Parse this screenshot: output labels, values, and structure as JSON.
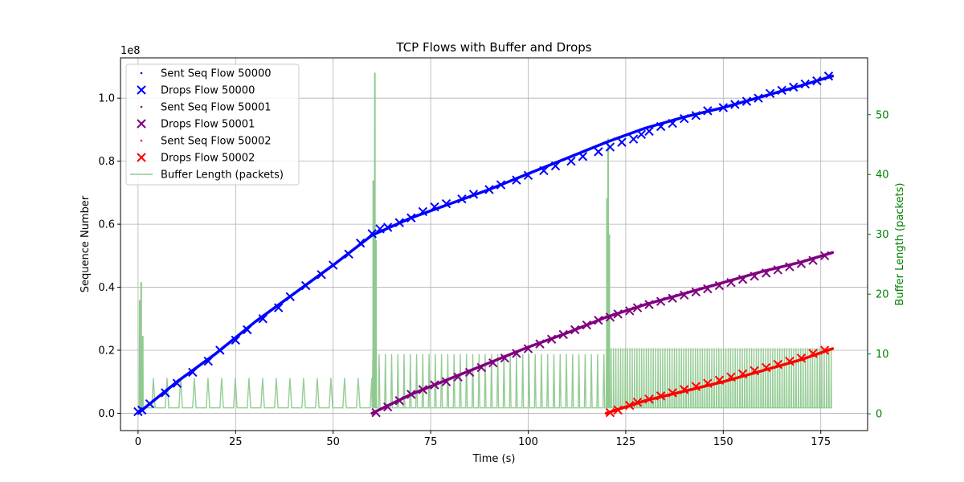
{
  "chart_data": {
    "type": "scatter",
    "title": "TCP Flows with Buffer and Drops",
    "xlabel": "Time (s)",
    "ylabel": "Sequence Number",
    "y_offset_label": "1e8",
    "y2label": "Buffer Length (packets)",
    "xlim": [
      -4.5,
      187
    ],
    "ylim": [
      -0.055,
      1.128
    ],
    "y2lim": [
      -2.8,
      59.5
    ],
    "x_ticks": [
      0,
      25,
      50,
      75,
      100,
      125,
      150,
      175
    ],
    "y_ticks": [
      0.0,
      0.2,
      0.4,
      0.6,
      0.8,
      1.0
    ],
    "y2_ticks": [
      0,
      10,
      20,
      30,
      40,
      50
    ],
    "x_tick_labels": [
      "0",
      "25",
      "50",
      "75",
      "100",
      "125",
      "150",
      "175"
    ],
    "y_tick_labels": [
      "0.0",
      "0.2",
      "0.4",
      "0.6",
      "0.8",
      "1.0"
    ],
    "y2_tick_labels": [
      "0",
      "10",
      "20",
      "30",
      "40",
      "50"
    ],
    "grid": true,
    "legend_position": "top-left",
    "colors": {
      "flow_50000": "#0000ff",
      "flow_50001": "#800080",
      "flow_50002": "#ff0000",
      "buffer": "#8fc98f",
      "right_axis": "#008000"
    },
    "legend": [
      {
        "label": "Sent Seq Flow 50000",
        "marker": "dot",
        "color": "#0000ff"
      },
      {
        "label": "Drops Flow 50000",
        "marker": "x",
        "color": "#0000ff"
      },
      {
        "label": "Sent Seq Flow 50001",
        "marker": "dot",
        "color": "#800080"
      },
      {
        "label": "Drops Flow 50001",
        "marker": "x",
        "color": "#800080"
      },
      {
        "label": "Sent Seq Flow 50002",
        "marker": "dot",
        "color": "#ff0000"
      },
      {
        "label": "Drops Flow 50002",
        "marker": "x",
        "color": "#ff0000"
      },
      {
        "label": "Buffer Length (packets)",
        "marker": "line",
        "color": "#8fc98f"
      }
    ],
    "series": [
      {
        "name": "Sent Seq Flow 50000",
        "kind": "sent",
        "color": "#0000ff",
        "x": [
          0,
          10,
          20,
          30,
          40,
          50,
          60,
          70,
          80,
          90,
          100,
          110,
          120,
          130,
          140,
          150,
          160,
          170,
          178
        ],
        "y": [
          0.0,
          0.1,
          0.19,
          0.29,
          0.38,
          0.47,
          0.565,
          0.62,
          0.665,
          0.71,
          0.76,
          0.81,
          0.86,
          0.905,
          0.94,
          0.97,
          1.005,
          1.04,
          1.07
        ]
      },
      {
        "name": "Drops Flow 50000",
        "kind": "drops",
        "color": "#0000ff",
        "x": [
          0,
          1,
          3,
          7,
          10,
          14,
          18,
          21,
          25,
          28,
          32,
          36,
          39,
          43,
          47,
          50,
          54,
          57,
          60,
          62,
          64,
          67,
          70,
          73,
          76,
          79,
          83,
          86,
          90,
          93,
          97,
          100,
          104,
          107,
          111,
          114,
          118,
          121,
          124,
          127,
          129,
          131,
          134,
          137,
          140,
          143,
          146,
          150,
          153,
          156,
          159,
          162,
          165,
          168,
          171,
          174,
          177
        ],
        "y": [
          0.005,
          0.01,
          0.03,
          0.065,
          0.095,
          0.13,
          0.165,
          0.2,
          0.232,
          0.265,
          0.3,
          0.335,
          0.37,
          0.405,
          0.44,
          0.47,
          0.505,
          0.54,
          0.57,
          0.585,
          0.59,
          0.605,
          0.62,
          0.64,
          0.655,
          0.665,
          0.68,
          0.695,
          0.71,
          0.725,
          0.74,
          0.755,
          0.77,
          0.785,
          0.8,
          0.815,
          0.83,
          0.845,
          0.86,
          0.87,
          0.885,
          0.895,
          0.91,
          0.92,
          0.935,
          0.945,
          0.96,
          0.97,
          0.98,
          0.99,
          1.0,
          1.015,
          1.025,
          1.035,
          1.045,
          1.055,
          1.07
        ]
      },
      {
        "name": "Sent Seq Flow 50001",
        "kind": "sent",
        "color": "#800080",
        "x": [
          60,
          70,
          80,
          90,
          100,
          110,
          120,
          130,
          140,
          150,
          160,
          170,
          178
        ],
        "y": [
          0.0,
          0.06,
          0.11,
          0.16,
          0.21,
          0.255,
          0.305,
          0.345,
          0.38,
          0.415,
          0.45,
          0.48,
          0.51
        ]
      },
      {
        "name": "Drops Flow 50001",
        "kind": "drops",
        "color": "#800080",
        "x": [
          61,
          64,
          67,
          70,
          73,
          76,
          79,
          82,
          85,
          88,
          91,
          94,
          97,
          100,
          103,
          106,
          109,
          112,
          115,
          118,
          121,
          123,
          126,
          128,
          131,
          134,
          137,
          140,
          143,
          146,
          149,
          152,
          155,
          158,
          161,
          164,
          167,
          170,
          173,
          176
        ],
        "y": [
          0.002,
          0.02,
          0.04,
          0.06,
          0.075,
          0.09,
          0.1,
          0.115,
          0.13,
          0.145,
          0.16,
          0.175,
          0.19,
          0.205,
          0.22,
          0.235,
          0.25,
          0.265,
          0.28,
          0.295,
          0.305,
          0.315,
          0.325,
          0.335,
          0.345,
          0.355,
          0.365,
          0.375,
          0.385,
          0.395,
          0.405,
          0.415,
          0.425,
          0.435,
          0.445,
          0.455,
          0.465,
          0.475,
          0.485,
          0.5
        ]
      },
      {
        "name": "Sent Seq Flow 50002",
        "kind": "sent",
        "color": "#ff0000",
        "x": [
          120,
          130,
          140,
          150,
          160,
          170,
          178
        ],
        "y": [
          0.0,
          0.04,
          0.07,
          0.1,
          0.135,
          0.17,
          0.205
        ]
      },
      {
        "name": "Drops Flow 50002",
        "kind": "drops",
        "color": "#ff0000",
        "x": [
          121,
          123,
          126,
          128,
          131,
          134,
          137,
          140,
          143,
          146,
          149,
          152,
          155,
          158,
          161,
          164,
          167,
          170,
          173,
          176
        ],
        "y": [
          0.002,
          0.01,
          0.025,
          0.035,
          0.045,
          0.055,
          0.065,
          0.075,
          0.085,
          0.095,
          0.105,
          0.115,
          0.125,
          0.135,
          0.145,
          0.155,
          0.165,
          0.175,
          0.19,
          0.2
        ]
      }
    ],
    "buffer": {
      "name": "Buffer Length (packets)",
      "baseline": 1,
      "segments": [
        {
          "start": 0,
          "end": 60,
          "period": 3.5,
          "peak": 6
        },
        {
          "start": 60,
          "end": 120,
          "period": 1.6,
          "peak": 10
        },
        {
          "start": 120,
          "end": 178,
          "period": 0.6,
          "peak": 11
        }
      ],
      "spikes": [
        {
          "x": 0.4,
          "y": 19
        },
        {
          "x": 0.8,
          "y": 22
        },
        {
          "x": 1.2,
          "y": 13
        },
        {
          "x": 60.3,
          "y": 39
        },
        {
          "x": 60.7,
          "y": 57
        },
        {
          "x": 61.0,
          "y": 29
        },
        {
          "x": 120.2,
          "y": 36
        },
        {
          "x": 120.5,
          "y": 46
        },
        {
          "x": 120.8,
          "y": 30
        }
      ]
    }
  }
}
